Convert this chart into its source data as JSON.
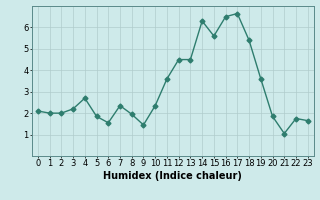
{
  "x": [
    0,
    1,
    2,
    3,
    4,
    5,
    6,
    7,
    8,
    9,
    10,
    11,
    12,
    13,
    14,
    15,
    16,
    17,
    18,
    19,
    20,
    21,
    22,
    23
  ],
  "y": [
    2.1,
    2.0,
    2.0,
    2.2,
    2.7,
    1.85,
    1.55,
    2.35,
    1.95,
    1.45,
    2.35,
    3.6,
    4.5,
    4.5,
    6.3,
    5.6,
    6.5,
    6.65,
    5.4,
    3.6,
    1.85,
    1.05,
    1.75,
    1.65
  ],
  "line_color": "#2e7d6e",
  "marker": "D",
  "marker_size": 2.5,
  "bg_color": "#ceeaea",
  "grid_color": "#b0cccc",
  "xlabel": "Humidex (Indice chaleur)",
  "xlabel_fontsize": 7,
  "ylim": [
    0,
    7
  ],
  "xlim": [
    -0.5,
    23.5
  ],
  "yticks": [
    1,
    2,
    3,
    4,
    5,
    6
  ],
  "xticks": [
    0,
    1,
    2,
    3,
    4,
    5,
    6,
    7,
    8,
    9,
    10,
    11,
    12,
    13,
    14,
    15,
    16,
    17,
    18,
    19,
    20,
    21,
    22,
    23
  ],
  "tick_fontsize": 6,
  "line_width": 1.0
}
